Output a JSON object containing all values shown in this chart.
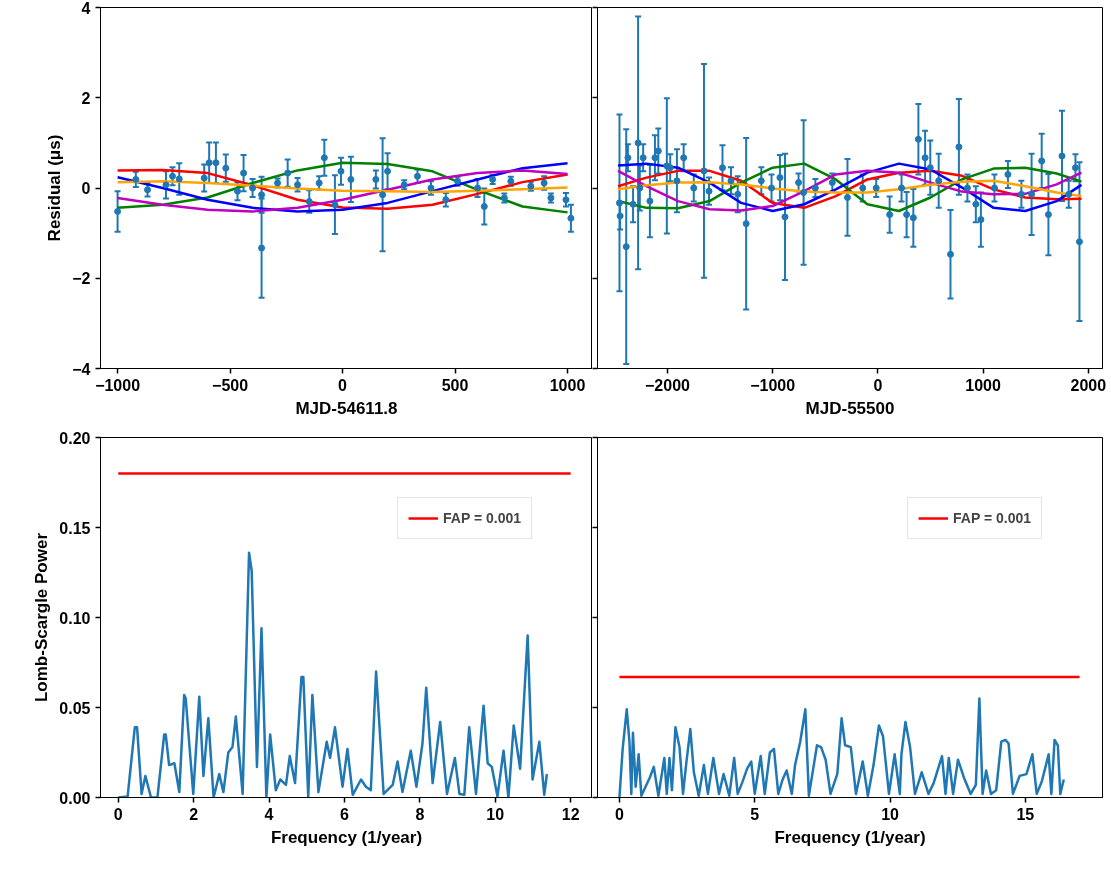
{
  "chart_data": [
    {
      "type": "scatter",
      "xlabel": "MJD-54611.8",
      "ylabel": "Residual (μs)",
      "xlim": [
        -1076,
        1111
      ],
      "xticks": [
        {
          "value": -1000,
          "label": "−1000"
        },
        {
          "value": -500,
          "label": "−500"
        },
        0,
        500,
        1000
      ],
      "ylim": [
        -4,
        4
      ],
      "yticks": [
        {
          "value": -4,
          "label": "−4"
        },
        {
          "value": -2,
          "label": "−2"
        },
        0,
        2,
        4
      ],
      "series": [
        {
          "type": "scatter",
          "marker": "circle",
          "color": "#1f77b4",
          "x": [
            -1000,
            -919,
            -867,
            -785,
            -756,
            -726,
            -615,
            -593,
            -563,
            -519,
            -467,
            -440,
            -400,
            -360,
            -360,
            -289,
            -244,
            -200,
            -148,
            -104,
            -81,
            -34,
            -7,
            37,
            148,
            178,
            200,
            274,
            333,
            393,
            459,
            511,
            600,
            630,
            667,
            719,
            748,
            837,
            896,
            926,
            993,
            1015
          ],
          "values": [
            -0.52,
            0.19,
            -0.04,
            0.07,
            0.26,
            0.2,
            0.22,
            0.56,
            0.56,
            0.44,
            -0.07,
            0.33,
            0,
            -0.15,
            -1.33,
            0.11,
            0.33,
            0.07,
            -0.3,
            0.11,
            0.67,
            -0.37,
            0.37,
            0.19,
            0.19,
            -0.15,
            0.37,
            0.07,
            0.26,
            0,
            -0.26,
            0.15,
            0,
            -0.41,
            0.19,
            -0.22,
            0.15,
            0.04,
            0.11,
            -0.22,
            -0.26,
            -0.67
          ],
          "errors": [
            0.45,
            0.17,
            0.15,
            0.3,
            0.2,
            0.35,
            0.3,
            0.45,
            0.45,
            0.3,
            0.2,
            0.4,
            0.2,
            0.4,
            1.1,
            0.1,
            0.3,
            0.15,
            0.25,
            0.15,
            0.4,
            0.65,
            0.3,
            0.5,
            0.2,
            1.25,
            0.4,
            0.1,
            0.15,
            0.15,
            0.15,
            0.1,
            0.2,
            0.4,
            0.1,
            0.1,
            0.1,
            0.1,
            0.15,
            0.1,
            0.15,
            0.3
          ]
        },
        {
          "type": "line",
          "color": "#ff0000",
          "x": [
            -1000,
            -800,
            -600,
            -400,
            -200,
            0,
            200,
            400,
            600,
            800,
            1000
          ],
          "values": [
            0.39,
            0.4,
            0.33,
            0.06,
            -0.26,
            -0.43,
            -0.46,
            -0.37,
            -0.13,
            0.13,
            0.3
          ]
        },
        {
          "type": "line",
          "color": "#008000",
          "x": [
            -1000,
            -800,
            -600,
            -400,
            -200,
            0,
            200,
            400,
            600,
            800,
            1000
          ],
          "values": [
            -0.44,
            -0.37,
            -0.21,
            0.11,
            0.39,
            0.56,
            0.53,
            0.37,
            -0.04,
            -0.41,
            -0.54
          ]
        },
        {
          "type": "line",
          "color": "#0000ff",
          "x": [
            -1000,
            -800,
            -600,
            -400,
            -200,
            0,
            200,
            400,
            600,
            800,
            1000
          ],
          "values": [
            0.24,
            0,
            -0.26,
            -0.44,
            -0.52,
            -0.48,
            -0.33,
            -0.07,
            0.19,
            0.44,
            0.55
          ]
        },
        {
          "type": "line",
          "color": "#bf00bf",
          "x": [
            -1000,
            -800,
            -600,
            -400,
            -200,
            0,
            200,
            400,
            600,
            800,
            1000
          ],
          "values": [
            -0.22,
            -0.37,
            -0.48,
            -0.52,
            -0.44,
            -0.26,
            -0.04,
            0.19,
            0.33,
            0.39,
            0.31
          ]
        },
        {
          "type": "line",
          "color": "#ffa500",
          "x": [
            -1000,
            -800,
            -600,
            -400,
            -200,
            0,
            200,
            400,
            600,
            800,
            1000
          ],
          "values": [
            0.13,
            0.15,
            0.11,
            0.05,
            -0.01,
            -0.06,
            -0.07,
            -0.09,
            -0.06,
            -0.03,
            0.01
          ]
        }
      ]
    },
    {
      "type": "scatter",
      "xlabel": "MJD-55500",
      "tick_labels": "x",
      "xlim": [
        -2665,
        2135
      ],
      "xticks": [
        {
          "value": -2000,
          "label": "−2000"
        },
        {
          "value": -1000,
          "label": "−1000"
        },
        0,
        1000,
        2000
      ],
      "ylim": [
        -4,
        4
      ],
      "yticks": [
        -4,
        -2,
        0,
        2,
        4
      ],
      "series": [
        {
          "type": "scatter",
          "marker": "circle",
          "color": "#1f77b4",
          "x": [
            -2456,
            -2450,
            -2392,
            -2376,
            -2327,
            -2279,
            -2263,
            -2231,
            -2167,
            -2119,
            -2087,
            -2006,
            -1974,
            -1910,
            -1846,
            -1750,
            -1653,
            -1605,
            -1477,
            -1396,
            -1332,
            -1252,
            -1108,
            -1011,
            -931,
            -883,
            -754,
            -706,
            -594,
            -433,
            -289,
            -144,
            -16,
            112,
            225,
            273,
            337,
            385,
            449,
            498,
            578,
            690,
            770,
            851,
            931,
            979,
            1108,
            1236,
            1364,
            1461,
            1557,
            1621,
            1750,
            1814,
            1878,
            1916
          ],
          "values": [
            -0.33,
            -0.62,
            -1.3,
            0.67,
            -0.36,
            1.0,
            0,
            0.67,
            -0.29,
            0.67,
            0.82,
            0.49,
            0.45,
            0.16,
            0.67,
            0,
            0.38,
            -0.07,
            0.45,
            0.16,
            -0.14,
            -0.79,
            0.16,
            0,
            0.23,
            -0.64,
            0.12,
            -0.1,
            0,
            0.12,
            -0.21,
            0,
            0,
            -0.59,
            0,
            -0.59,
            -0.66,
            1.08,
            0.67,
            0.45,
            0.16,
            -1.47,
            0.91,
            0,
            -0.36,
            -0.7,
            0,
            0.3,
            -0.14,
            -0.14,
            0.6,
            -0.59,
            0.71,
            -0.14,
            0.45,
            -1.19
          ],
          "errors": [
            1.96,
            0.3,
            2.6,
            0.3,
            0.4,
            2.8,
            0.5,
            0.3,
            0.8,
            0.5,
            0.5,
            1.5,
            0.3,
            0.7,
            0.3,
            0.3,
            2.37,
            0.3,
            0.5,
            0.3,
            0.4,
            1.9,
            0.3,
            0.3,
            0.5,
            1.4,
            0.2,
            1.6,
            0.2,
            0.2,
            0.85,
            0.3,
            0.2,
            0.4,
            0.3,
            0.5,
            0.64,
            0.78,
            0.6,
            0.6,
            0.6,
            0.98,
            1.06,
            0.3,
            0.4,
            0.6,
            0.3,
            0.3,
            0.3,
            0.9,
            0.6,
            0.9,
            1.0,
            0.3,
            0.3,
            1.76
          ]
        },
        {
          "type": "line",
          "color": "#ff0000",
          "x": [
            -2470,
            -2200,
            -1900,
            -1600,
            -1300,
            -1000,
            -700,
            -400,
            -100,
            200,
            500,
            800,
            1100,
            1400,
            1700,
            1935
          ],
          "values": [
            0.04,
            0.23,
            0.38,
            0.38,
            0.16,
            -0.33,
            -0.44,
            -0.18,
            0.19,
            0.34,
            0.38,
            0.27,
            -0.03,
            -0.21,
            -0.25,
            -0.24
          ]
        },
        {
          "type": "line",
          "color": "#008000",
          "x": [
            -2470,
            -2200,
            -1900,
            -1600,
            -1300,
            -1000,
            -700,
            -400,
            -100,
            200,
            500,
            800,
            1100,
            1400,
            1700,
            1935
          ],
          "values": [
            -0.29,
            -0.44,
            -0.45,
            -0.29,
            0.12,
            0.45,
            0.54,
            0.19,
            -0.36,
            -0.51,
            -0.21,
            0.19,
            0.43,
            0.45,
            0.32,
            0.14
          ]
        },
        {
          "type": "line",
          "color": "#0000ff",
          "x": [
            -2470,
            -2200,
            -1900,
            -1600,
            -1300,
            -1000,
            -700,
            -400,
            -100,
            200,
            500,
            800,
            1100,
            1400,
            1700,
            1935
          ],
          "values": [
            0.5,
            0.54,
            0.45,
            0.12,
            -0.33,
            -0.51,
            -0.36,
            -0.03,
            0.34,
            0.54,
            0.41,
            0.01,
            -0.44,
            -0.51,
            -0.29,
            0.07
          ]
        },
        {
          "type": "line",
          "color": "#bf00bf",
          "x": [
            -2470,
            -2200,
            -1900,
            -1600,
            -1300,
            -1000,
            -700,
            -400,
            -100,
            200,
            500,
            800,
            1100,
            1400,
            1700,
            1935
          ],
          "values": [
            0.38,
            0.04,
            -0.29,
            -0.47,
            -0.5,
            -0.4,
            -0.07,
            0.3,
            0.38,
            0.34,
            0.12,
            -0.08,
            -0.14,
            -0.13,
            0.08,
            0.34
          ]
        },
        {
          "type": "line",
          "color": "#ffa500",
          "x": [
            -2470,
            -2200,
            -1900,
            -1600,
            -1300,
            -1000,
            -700,
            -400,
            -100,
            200,
            500,
            800,
            1100,
            1400,
            1700,
            1935
          ],
          "values": [
            -0.03,
            0.06,
            0.12,
            0.13,
            0.08,
            -0.01,
            -0.08,
            -0.1,
            -0.1,
            -0.03,
            0.07,
            0.14,
            0.16,
            0.04,
            -0.1,
            -0.18
          ]
        }
      ]
    },
    {
      "type": "line",
      "xlabel": "Frequency (1/year)",
      "ylabel": "Lomb-Scargle Power",
      "legend": "top right",
      "xlim": [
        -0.47,
        12.58
      ],
      "xticks": [
        0,
        2,
        4,
        6,
        8,
        10,
        12
      ],
      "ylim": [
        0,
        0.2
      ],
      "yticks": [
        {
          "value": 0,
          "label": "0.00"
        },
        0.05,
        {
          "value": 0.1,
          "label": "0.10"
        },
        0.15,
        {
          "value": 0.2,
          "label": "0.20"
        }
      ],
      "series": [
        {
          "color": "#1f77b4",
          "x": [
            0,
            0.25,
            0.44,
            0.5,
            0.62,
            0.72,
            0.87,
            1.04,
            1.22,
            1.26,
            1.35,
            1.49,
            1.62,
            1.75,
            1.79,
            1.99,
            2.15,
            2.26,
            2.39,
            2.53,
            2.68,
            2.79,
            2.92,
            3.03,
            3.12,
            3.3,
            3.47,
            3.54,
            3.68,
            3.8,
            3.93,
            4.03,
            4.18,
            4.3,
            4.45,
            4.55,
            4.69,
            4.86,
            4.91,
            5.04,
            5.15,
            5.31,
            5.53,
            5.62,
            5.75,
            5.95,
            6.08,
            6.22,
            6.44,
            6.57,
            6.7,
            6.84,
            7.04,
            7.28,
            7.41,
            7.54,
            7.76,
            7.91,
            8.07,
            8.17,
            8.34,
            8.54,
            8.72,
            8.93,
            9.05,
            9.18,
            9.31,
            9.49,
            9.69,
            9.8,
            9.91,
            10.06,
            10.22,
            10.35,
            10.49,
            10.66,
            10.86,
            10.99,
            11.17,
            11.3,
            11.37
          ],
          "values": [
            0,
            0.0006,
            0.039,
            0.039,
            0.002,
            0.012,
            0,
            0,
            0.035,
            0.035,
            0.018,
            0.019,
            0.003,
            0.057,
            0.055,
            0.002,
            0.056,
            0.012,
            0.044,
            0,
            0.013,
            0.003,
            0.025,
            0.028,
            0.045,
            0.002,
            0.136,
            0.126,
            0.017,
            0.094,
            0,
            0.035,
            0.004,
            0.01,
            0.007,
            0.023,
            0.008,
            0.067,
            0.067,
            0.0006,
            0.057,
            0.003,
            0.031,
            0.022,
            0.039,
            0.006,
            0.027,
            0.0015,
            0.01,
            0.006,
            0.004,
            0.07,
            0.002,
            0.007,
            0.02,
            0.003,
            0.026,
            0.006,
            0.03,
            0.061,
            0.008,
            0.042,
            0.002,
            0.022,
            0.002,
            0.0015,
            0.039,
            0.002,
            0.051,
            0.019,
            0.017,
            0.0006,
            0.026,
            0,
            0.04,
            0.016,
            0.09,
            0.01,
            0.031,
            0.0015,
            0.013
          ]
        },
        {
          "name": "FAP = 0.001",
          "color": "#ff0000",
          "x": [
            0,
            12
          ],
          "values": [
            0.18,
            0.18
          ]
        }
      ]
    },
    {
      "type": "line",
      "xlabel": "Frequency (1/year)",
      "legend": "top right",
      "tick_labels": "x",
      "xlim": [
        -0.81,
        17.85
      ],
      "xticks": [
        0,
        5,
        10,
        15
      ],
      "ylim": [
        0,
        0.2
      ],
      "yticks": [
        0,
        0.05,
        0.1,
        0.15,
        0.2
      ],
      "series": [
        {
          "color": "#1f77b4",
          "x": [
            0,
            0.12,
            0.27,
            0.37,
            0.44,
            0.5,
            0.6,
            0.71,
            0.81,
            1.12,
            1.27,
            1.44,
            1.66,
            1.75,
            1.85,
            1.94,
            2.07,
            2.22,
            2.35,
            2.47,
            2.62,
            2.75,
            2.93,
            3.12,
            3.27,
            3.47,
            3.68,
            3.85,
            4.06,
            4.24,
            4.37,
            4.53,
            4.72,
            4.87,
            5.0,
            5.22,
            5.37,
            5.56,
            5.71,
            5.87,
            6.03,
            6.18,
            6.37,
            6.49,
            6.68,
            6.87,
            7.0,
            7.3,
            7.45,
            7.62,
            7.8,
            8.05,
            8.21,
            8.34,
            8.55,
            8.74,
            8.99,
            9.18,
            9.39,
            9.59,
            9.74,
            9.96,
            10.17,
            10.36,
            10.42,
            10.57,
            10.74,
            10.92,
            11.17,
            11.42,
            11.61,
            11.92,
            12.05,
            12.17,
            12.33,
            12.51,
            12.73,
            12.98,
            13.17,
            13.3,
            13.42,
            13.55,
            13.73,
            13.92,
            14.11,
            14.26,
            14.38,
            14.54,
            14.79,
            15.04,
            15.26,
            15.42,
            15.61,
            15.86,
            15.96,
            16.08,
            16.2,
            16.29,
            16.42
          ],
          "values": [
            0,
            0.027,
            0.049,
            0.031,
            0.002,
            0.036,
            0.006,
            0.024,
            0.001,
            0.011,
            0.017,
            0.001,
            0.022,
            0.002,
            0.022,
            0.004,
            0.039,
            0.028,
            0.002,
            0.019,
            0.038,
            0.014,
            0.001,
            0.018,
            0.002,
            0.022,
            0.002,
            0.013,
            0.001,
            0.022,
            0.002,
            0.008,
            0.016,
            0.02,
            0.002,
            0.023,
            0.002,
            0.025,
            0.027,
            0.002,
            0.01,
            0.015,
            0.002,
            0.018,
            0.031,
            0.049,
            0.001,
            0.029,
            0.028,
            0.021,
            0.002,
            0.013,
            0.044,
            0.029,
            0.028,
            0.002,
            0.02,
            0.001,
            0.018,
            0.04,
            0.034,
            0.002,
            0.024,
            0.002,
            0.024,
            0.042,
            0.028,
            0.002,
            0.014,
            0.002,
            0.008,
            0.023,
            0.002,
            0.022,
            0.002,
            0.021,
            0.011,
            0.002,
            0.007,
            0.055,
            0.002,
            0.015,
            0.002,
            0.004,
            0.031,
            0.032,
            0.03,
            0.002,
            0.012,
            0.013,
            0.024,
            0.002,
            0.009,
            0.024,
            0.002,
            0.032,
            0.029,
            0.002,
            0.01
          ]
        },
        {
          "name": "FAP = 0.001",
          "color": "#ff0000",
          "x": [
            0,
            17
          ],
          "values": [
            0.067,
            0.067
          ]
        }
      ]
    }
  ]
}
